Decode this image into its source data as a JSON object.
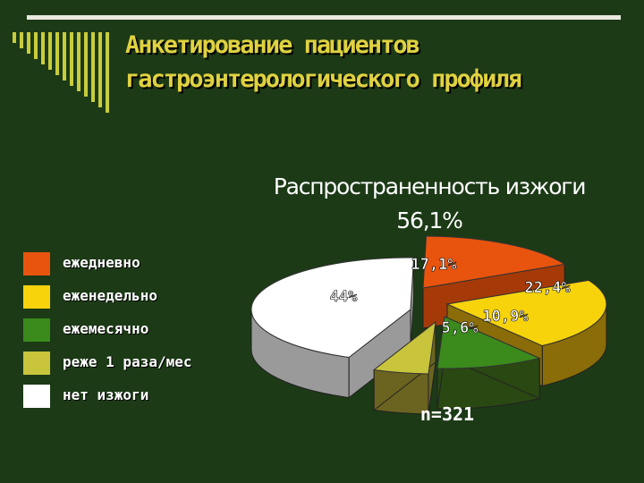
{
  "slide": {
    "title": "Анкетирование пациентов гастроэнтерологического профиля",
    "subtitle": "Распространенность изжоги 56,1%",
    "sample_size": "n=321"
  },
  "colors": {
    "background": "#1c3a16",
    "title": "#e0d240",
    "rule": "#e8e8e0"
  },
  "chart_data": {
    "type": "pie",
    "style": "3d-exploded",
    "title": "Распространенность изжоги 56,1%",
    "legend_position": "left",
    "slices": [
      {
        "name": "ежедневно",
        "value": 17.1,
        "label": "17,1%",
        "color": "#e8540e",
        "side": "#a53a08"
      },
      {
        "name": "еженедельно",
        "value": 22.4,
        "label": "22,4%",
        "color": "#f7d30c",
        "side": "#8a6c08"
      },
      {
        "name": "ежемесячно",
        "value": 10.9,
        "label": "10,9%",
        "color": "#3a8a1c",
        "side": "#2a4812"
      },
      {
        "name": "реже 1 раза/мес",
        "value": 5.6,
        "label": "5,6%",
        "color": "#c8c43c",
        "side": "#6b6420"
      },
      {
        "name": "нет изжоги",
        "value": 44,
        "label": "44%",
        "color": "#ffffff",
        "side": "#9a9a9a"
      }
    ]
  }
}
